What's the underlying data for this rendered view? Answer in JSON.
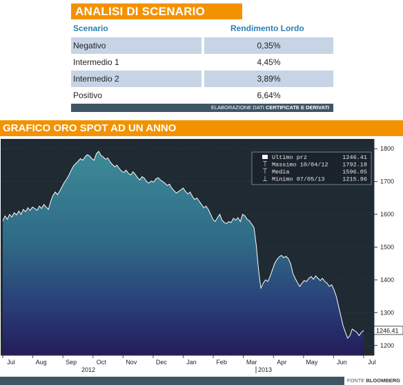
{
  "scenario": {
    "title": "ANALISI DI SCENARIO",
    "col1_header": "Scenario",
    "col2_header": "Rendimento Lordo",
    "rows": [
      {
        "label": "Negativo",
        "value": "0,35%"
      },
      {
        "label": "Intermedio 1",
        "value": "4,45%"
      },
      {
        "label": "Intermedio 2",
        "value": "3,89%"
      },
      {
        "label": "Positivo",
        "value": "6,64%"
      }
    ],
    "footer_prefix": "ELABORAZIONE DATI",
    "footer_bold": "CERTIFICATE E DERIVATI"
  },
  "chart_title": "GRAFICO ORO SPOT AD UN ANNO",
  "source_prefix": "FONTE",
  "source_bold": "BLOOMBERG",
  "chart_data": {
    "type": "area",
    "x_labels": [
      "Jul",
      "Aug",
      "Sep",
      "Oct",
      "Nov",
      "Dec",
      "Jan",
      "Feb",
      "Mar",
      "Apr",
      "May",
      "Jun",
      "Jul"
    ],
    "year_labels": [
      "2012",
      "2013"
    ],
    "y_ticks": [
      1200,
      1300,
      1400,
      1500,
      1600,
      1700,
      1800
    ],
    "ylim": [
      1170,
      1830
    ],
    "last_value_label": "1246.41",
    "legend": [
      {
        "name": "Ultimo prz",
        "value": "1246.41"
      },
      {
        "name": "Massimo 10/04/12",
        "value": "1792.18"
      },
      {
        "name": "Media",
        "value": "1596.05"
      },
      {
        "name": "Minimo 07/05/13",
        "value": "1215.96"
      }
    ],
    "series": [
      {
        "name": "Ultimo prz",
        "values": [
          1580,
          1595,
          1585,
          1600,
          1592,
          1605,
          1598,
          1610,
          1600,
          1615,
          1608,
          1620,
          1612,
          1622,
          1618,
          1612,
          1625,
          1618,
          1630,
          1622,
          1615,
          1640,
          1658,
          1668,
          1660,
          1672,
          1685,
          1698,
          1708,
          1720,
          1735,
          1748,
          1755,
          1762,
          1770,
          1765,
          1775,
          1782,
          1778,
          1770,
          1765,
          1785,
          1792,
          1780,
          1775,
          1768,
          1772,
          1760,
          1752,
          1745,
          1750,
          1740,
          1732,
          1728,
          1735,
          1725,
          1720,
          1730,
          1722,
          1712,
          1705,
          1715,
          1710,
          1700,
          1695,
          1702,
          1698,
          1708,
          1712,
          1705,
          1700,
          1695,
          1688,
          1692,
          1680,
          1672,
          1665,
          1670,
          1675,
          1680,
          1670,
          1662,
          1668,
          1655,
          1645,
          1650,
          1640,
          1630,
          1620,
          1625,
          1615,
          1600,
          1585,
          1578,
          1590,
          1600,
          1582,
          1575,
          1572,
          1578,
          1575,
          1588,
          1582,
          1590,
          1578,
          1600,
          1595,
          1585,
          1580,
          1570,
          1560,
          1505,
          1430,
          1375,
          1390,
          1400,
          1395,
          1410,
          1430,
          1450,
          1462,
          1470,
          1475,
          1468,
          1472,
          1465,
          1450,
          1420,
          1405,
          1392,
          1380,
          1390,
          1398,
          1395,
          1405,
          1410,
          1402,
          1412,
          1405,
          1398,
          1405,
          1395,
          1390,
          1380,
          1385,
          1370,
          1350,
          1320,
          1290,
          1260,
          1240,
          1222,
          1230,
          1250,
          1245,
          1240,
          1230,
          1240,
          1246
        ]
      }
    ]
  }
}
